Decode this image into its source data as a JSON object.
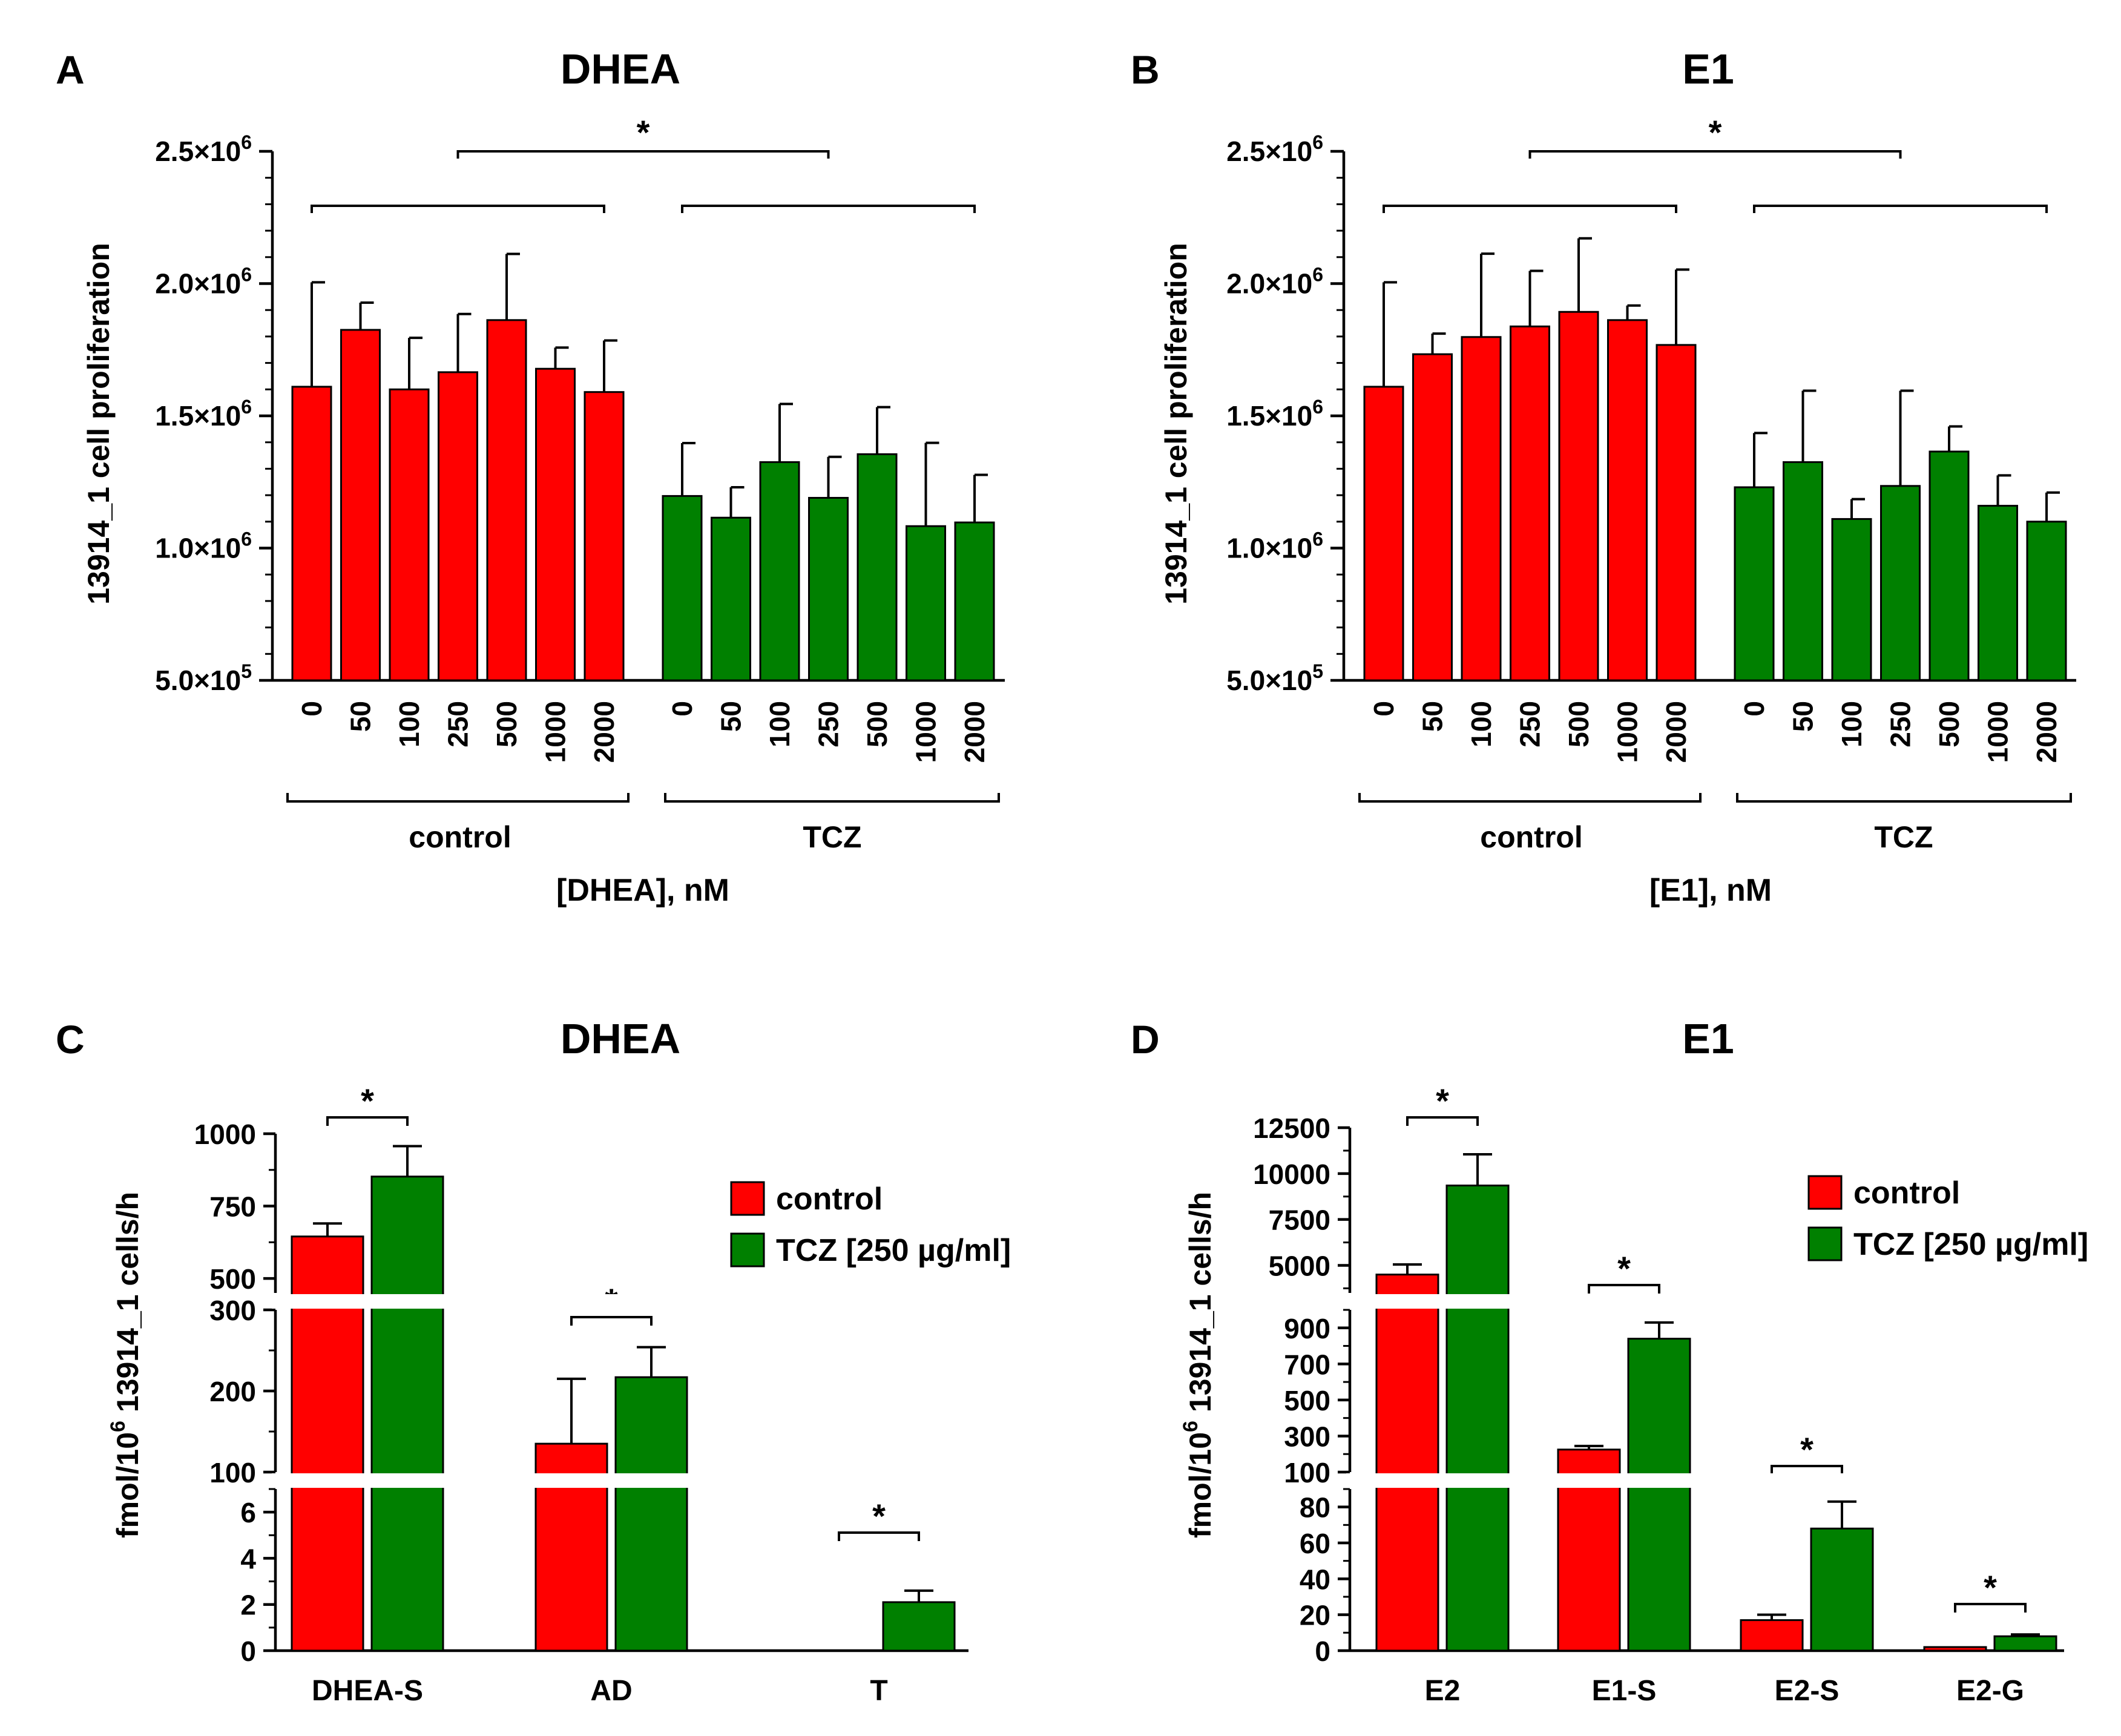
{
  "colors": {
    "control": "#ff0000",
    "tcz": "#008000"
  },
  "chart_data": [
    {
      "panel": "A",
      "type": "bar",
      "title": "DHEA",
      "ylabel": "13914_1 cell proliferation",
      "xlabel": "[DHEA], nM",
      "ylim": [
        500000,
        2500000
      ],
      "yticks": [
        {
          "value": 500000,
          "mant": "5.0",
          "exp": "5"
        },
        {
          "value": 1000000,
          "mant": "1.0",
          "exp": "6"
        },
        {
          "value": 1500000,
          "mant": "1.5",
          "exp": "6"
        },
        {
          "value": 2000000,
          "mant": "2.0",
          "exp": "6"
        },
        {
          "value": 2500000,
          "mant": "2.5",
          "exp": "6"
        }
      ],
      "categories": [
        "0",
        "50",
        "100",
        "250",
        "500",
        "1000",
        "2000"
      ],
      "groups": [
        "control",
        "TCZ"
      ],
      "series": [
        {
          "name": "control",
          "values": [
            1610000,
            1825000,
            1600000,
            1665000,
            1862000,
            1678000,
            1590000
          ],
          "errors": [
            395000,
            103000,
            195000,
            220000,
            250000,
            80000,
            195000
          ]
        },
        {
          "name": "TCZ",
          "values": [
            1197000,
            1115000,
            1325000,
            1190000,
            1355000,
            1083000,
            1097000
          ],
          "errors": [
            200000,
            115000,
            220000,
            155000,
            178000,
            315000,
            180000
          ]
        }
      ],
      "significance": "*"
    },
    {
      "panel": "B",
      "type": "bar",
      "title": "E1",
      "ylabel": "13914_1 cell proliferation",
      "xlabel": "[E1], nM",
      "ylim": [
        500000,
        2500000
      ],
      "yticks": [
        {
          "value": 500000,
          "mant": "5.0",
          "exp": "5"
        },
        {
          "value": 1000000,
          "mant": "1.0",
          "exp": "6"
        },
        {
          "value": 1500000,
          "mant": "1.5",
          "exp": "6"
        },
        {
          "value": 2000000,
          "mant": "2.0",
          "exp": "6"
        },
        {
          "value": 2500000,
          "mant": "2.5",
          "exp": "6"
        }
      ],
      "categories": [
        "0",
        "50",
        "100",
        "250",
        "500",
        "1000",
        "2000"
      ],
      "groups": [
        "control",
        "TCZ"
      ],
      "series": [
        {
          "name": "control",
          "values": [
            1610000,
            1733000,
            1798000,
            1838000,
            1893000,
            1862000,
            1768000
          ],
          "errors": [
            395000,
            78000,
            315000,
            210000,
            278000,
            55000,
            285000
          ]
        },
        {
          "name": "TCZ",
          "values": [
            1230000,
            1325000,
            1110000,
            1235000,
            1365000,
            1160000,
            1100000
          ],
          "errors": [
            205000,
            270000,
            75000,
            360000,
            95000,
            115000,
            110000
          ]
        }
      ],
      "significance": "*"
    },
    {
      "panel": "C",
      "type": "bar",
      "title": "DHEA",
      "ylabel": "fmol/10^6 13914_1 cells/h",
      "categories": [
        "DHEA-S",
        "AD",
        "T"
      ],
      "legend": [
        "control",
        "TCZ [250 µg/ml]"
      ],
      "axis_segments": [
        {
          "range": [
            0,
            7
          ],
          "ticks": [
            "0",
            "2",
            "4",
            "6"
          ]
        },
        {
          "range": [
            100,
            300
          ],
          "ticks": [
            "100",
            "200",
            "300"
          ]
        },
        {
          "range": [
            450,
            1000
          ],
          "ticks": [
            "500",
            "750",
            "1000"
          ]
        }
      ],
      "series": [
        {
          "name": "control",
          "values": [
            645,
            135,
            0
          ],
          "errors": [
            45,
            80,
            0
          ]
        },
        {
          "name": "TCZ [250 µg/ml]",
          "values": [
            852,
            217,
            2.1
          ],
          "errors": [
            105,
            37,
            0.5
          ]
        }
      ],
      "significance": [
        "*",
        "*",
        "*"
      ]
    },
    {
      "panel": "D",
      "type": "bar",
      "title": "E1",
      "ylabel": "fmol/10^6 13914_1 cells/h",
      "categories": [
        "E2",
        "E1-S",
        "E2-S",
        "E2-G"
      ],
      "legend": [
        "control",
        "TCZ [250 µg/ml]"
      ],
      "axis_segments": [
        {
          "range": [
            0,
            90
          ],
          "ticks": [
            "0",
            "20",
            "40",
            "60",
            "80"
          ]
        },
        {
          "range": [
            100,
            1000
          ],
          "ticks": [
            "100",
            "300",
            "500",
            "700",
            "900"
          ]
        },
        {
          "range": [
            3500,
            12500
          ],
          "ticks": [
            "5000",
            "7500",
            "10000",
            "12500"
          ]
        }
      ],
      "series": [
        {
          "name": "control",
          "values": [
            4500,
            225,
            17,
            2
          ],
          "errors": [
            550,
            20,
            3,
            0
          ]
        },
        {
          "name": "TCZ [250 µg/ml]",
          "values": [
            9350,
            840,
            68,
            8
          ],
          "errors": [
            1700,
            90,
            15,
            1
          ]
        }
      ],
      "significance": [
        "*",
        "*",
        "*",
        "*"
      ]
    }
  ],
  "panel_letters": [
    "A",
    "B",
    "C",
    "D"
  ],
  "mult_sign": "×10"
}
